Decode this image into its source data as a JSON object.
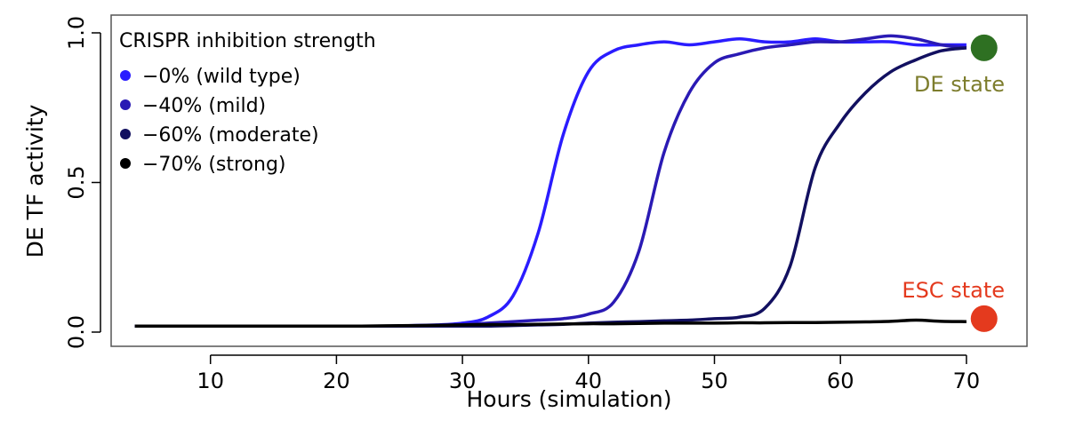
{
  "chart_data": {
    "type": "line",
    "title": "",
    "xlabel": "Hours (simulation)",
    "ylabel": "DE TF activity",
    "xlim": [
      2,
      75
    ],
    "ylim": [
      -0.05,
      1.05
    ],
    "xticks": [
      10,
      20,
      30,
      40,
      50,
      60,
      70
    ],
    "yticks": [
      0.0,
      0.5,
      1.0
    ],
    "ytick_labels": [
      "0.0",
      "0.5",
      "1.0"
    ],
    "grid": false,
    "legend": {
      "title": "CRISPR inhibition strength",
      "placement": "top-left"
    },
    "x": [
      4,
      6,
      8,
      10,
      12,
      14,
      16,
      18,
      20,
      22,
      24,
      26,
      28,
      30,
      32,
      34,
      36,
      38,
      40,
      42,
      44,
      46,
      48,
      50,
      52,
      54,
      56,
      58,
      60,
      62,
      64,
      66,
      68,
      70
    ],
    "series": [
      {
        "name": "−0%   (wild type)",
        "color": "#2a1cff",
        "values": [
          0.02,
          0.02,
          0.02,
          0.02,
          0.02,
          0.02,
          0.02,
          0.02,
          0.02,
          0.02,
          0.02,
          0.022,
          0.024,
          0.03,
          0.05,
          0.12,
          0.33,
          0.66,
          0.87,
          0.94,
          0.96,
          0.97,
          0.96,
          0.97,
          0.98,
          0.97,
          0.97,
          0.98,
          0.97,
          0.97,
          0.97,
          0.96,
          0.96,
          0.96
        ]
      },
      {
        "name": "−40% (mild)",
        "color": "#2a1ab4",
        "values": [
          0.02,
          0.02,
          0.02,
          0.02,
          0.02,
          0.02,
          0.02,
          0.02,
          0.02,
          0.02,
          0.02,
          0.02,
          0.022,
          0.025,
          0.03,
          0.035,
          0.04,
          0.045,
          0.06,
          0.1,
          0.27,
          0.6,
          0.8,
          0.9,
          0.93,
          0.95,
          0.96,
          0.97,
          0.97,
          0.98,
          0.99,
          0.98,
          0.96,
          0.95
        ]
      },
      {
        "name": "−60% (moderate)",
        "color": "#121060",
        "values": [
          0.02,
          0.02,
          0.02,
          0.02,
          0.02,
          0.02,
          0.02,
          0.02,
          0.02,
          0.02,
          0.02,
          0.02,
          0.02,
          0.02,
          0.02,
          0.022,
          0.024,
          0.026,
          0.03,
          0.033,
          0.035,
          0.038,
          0.04,
          0.045,
          0.05,
          0.08,
          0.22,
          0.55,
          0.7,
          0.8,
          0.87,
          0.91,
          0.94,
          0.95
        ]
      },
      {
        "name": "−70% (strong)",
        "color": "#000000",
        "values": [
          0.02,
          0.02,
          0.02,
          0.02,
          0.02,
          0.02,
          0.02,
          0.02,
          0.02,
          0.02,
          0.021,
          0.022,
          0.023,
          0.024,
          0.025,
          0.025,
          0.026,
          0.027,
          0.028,
          0.028,
          0.029,
          0.03,
          0.03,
          0.03,
          0.031,
          0.031,
          0.032,
          0.032,
          0.033,
          0.034,
          0.036,
          0.04,
          0.036,
          0.035
        ]
      }
    ],
    "annotations": [
      {
        "text": "DE state",
        "x": 71.4,
        "y": 0.95,
        "color": "#2e7022",
        "text_color": "#7d7d2d"
      },
      {
        "text": "ESC state",
        "x": 71.4,
        "y": 0.045,
        "color": "#e43a1e",
        "text_color": "#e43a1e"
      }
    ]
  }
}
